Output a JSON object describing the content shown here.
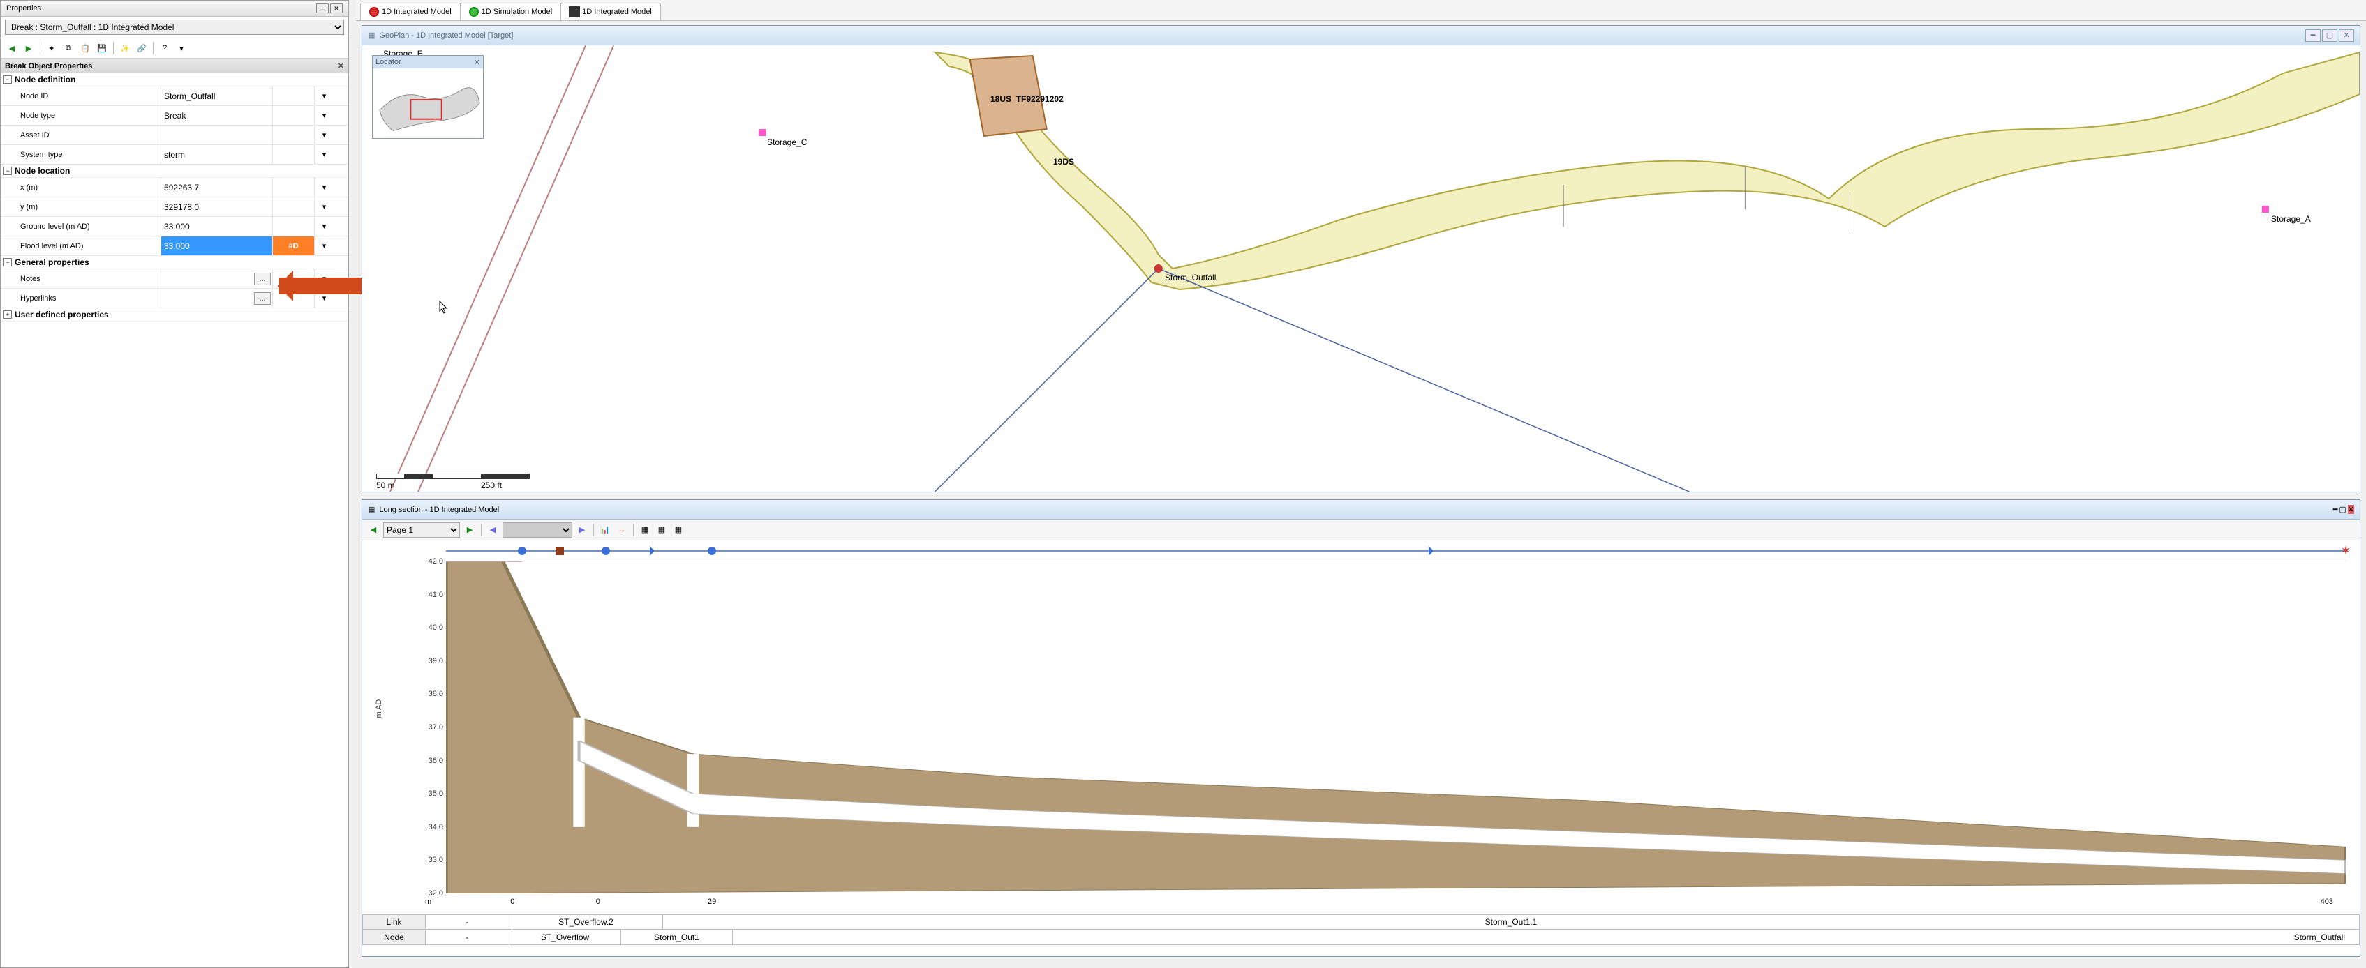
{
  "properties_panel": {
    "title": "Properties",
    "object_selector": "Break : Storm_Outfall : 1D Integrated Model",
    "section_title": "Break Object Properties",
    "groups": {
      "node_def": {
        "label": "Node definition",
        "fields": {
          "node_id": {
            "label": "Node ID",
            "value": "Storm_Outfall"
          },
          "node_type": {
            "label": "Node type",
            "value": "Break"
          },
          "asset_id": {
            "label": "Asset ID",
            "value": ""
          },
          "system_type": {
            "label": "System type",
            "value": "storm"
          }
        }
      },
      "node_loc": {
        "label": "Node location",
        "fields": {
          "x": {
            "label": "x (m)",
            "value": "592263.7"
          },
          "y": {
            "label": "y (m)",
            "value": "329178.0"
          },
          "ground": {
            "label": "Ground level (m AD)",
            "value": "33.000"
          },
          "flood": {
            "label": "Flood level (m AD)",
            "value": "33.000",
            "flag": "#D"
          }
        }
      },
      "general": {
        "label": "General properties",
        "fields": {
          "notes": {
            "label": "Notes",
            "value": "..."
          },
          "hyperlinks": {
            "label": "Hyperlinks",
            "value": "..."
          }
        }
      },
      "user_def": {
        "label": "User defined properties"
      }
    }
  },
  "tabs": [
    {
      "label": "1D Integrated Model",
      "icon": "red"
    },
    {
      "label": "1D Simulation Model",
      "icon": "green"
    },
    {
      "label": "1D Integrated Model",
      "icon": "grid"
    }
  ],
  "geoplan": {
    "title": "GeoPlan - 1D Integrated Model [Target]",
    "locator_title": "Locator",
    "labels": {
      "storage_c": "Storage_C",
      "storage_a": "Storage_A",
      "storm_outfall": "Storm_Outfall",
      "eighteen_us": "18US_TF92291202",
      "nineteen_ds": "19DS",
      "storage_e": "Storage_E"
    },
    "scale": {
      "left": "50 m",
      "right": "250 ft"
    },
    "colors": {
      "river_fill": "#f3f0c2",
      "river_stroke": "#b0a83e",
      "node_pink": "#ff55cc",
      "node_red": "#cc3333",
      "road_fill": "#d9b48f",
      "road_stroke": "#a4652a",
      "thin_line": "#c08080",
      "thin_blue": "#4a64a0"
    }
  },
  "longsection": {
    "title": "Long section - 1D Integrated Model",
    "page_label": "Page 1",
    "y": {
      "label": "m AD",
      "ticks": [
        32.0,
        33.0,
        34.0,
        35.0,
        36.0,
        37.0,
        38.0,
        39.0,
        40.0,
        41.0,
        42.0
      ],
      "min": 32.0,
      "max": 42.0
    },
    "x": {
      "label": "m",
      "ticks": [
        0,
        0,
        29,
        403
      ],
      "tick_positions_pct": [
        3.5,
        8.0,
        14.0,
        99.0
      ]
    },
    "profile": {
      "ground_fill": "#b39b77",
      "pipe_color": "#ffffff",
      "points_top": [
        [
          0,
          42.0
        ],
        [
          3,
          42.0
        ],
        [
          7,
          37.3
        ],
        [
          13,
          36.2
        ],
        [
          30,
          35.5
        ],
        [
          60,
          34.8
        ],
        [
          100,
          33.4
        ]
      ],
      "points_pipe_top": [
        [
          7,
          36.6
        ],
        [
          13,
          35.0
        ],
        [
          30,
          34.5
        ],
        [
          100,
          33.0
        ]
      ],
      "points_pipe_bot": [
        [
          7,
          36.0
        ],
        [
          13,
          34.4
        ],
        [
          30,
          34.0
        ],
        [
          100,
          32.6
        ]
      ]
    },
    "timeline": {
      "line_color": "#3a6fd8",
      "markers": [
        {
          "type": "dot",
          "pos_pct": 4,
          "color": "#3a6fd8"
        },
        {
          "type": "square",
          "pos_pct": 6,
          "color": "#8b3a1a"
        },
        {
          "type": "dot",
          "pos_pct": 8.4,
          "color": "#3a6fd8"
        },
        {
          "type": "arrow",
          "pos_pct": 11,
          "color": "#3a6fd8"
        },
        {
          "type": "dot",
          "pos_pct": 14,
          "color": "#3a6fd8"
        },
        {
          "type": "arrow",
          "pos_pct": 52,
          "color": "#3a6fd8"
        },
        {
          "type": "star",
          "pos_pct": 100,
          "color": "#d03030"
        }
      ]
    },
    "tables": {
      "link": {
        "label": "Link",
        "cells": [
          "-",
          "ST_Overflow.2",
          "Storm_Out1.1"
        ]
      },
      "node": {
        "label": "Node",
        "cells": [
          "-",
          "ST_Overflow",
          "Storm_Out1",
          "Storm_Outfall"
        ]
      }
    }
  },
  "callout": {
    "color": "#d14a1b"
  }
}
